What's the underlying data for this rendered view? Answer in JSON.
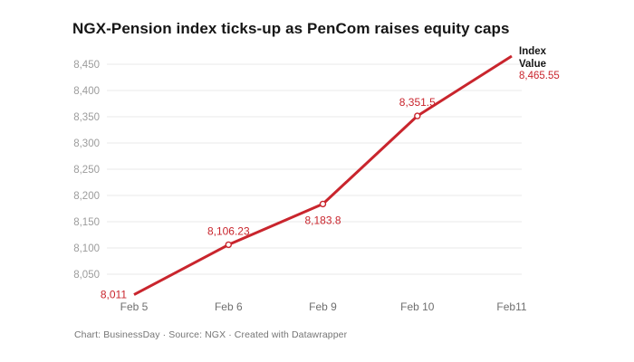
{
  "title": "NGX-Pension index ticks-up as PenCom raises equity caps",
  "legend": {
    "label_line1": "Index",
    "label_line2": "Value",
    "value": "8,465.55"
  },
  "footer": "Chart: BusinessDay · Source: NGX  · Created with Datawrapper",
  "colors": {
    "line": "#c9252d",
    "point_label": "#c9252d",
    "legend_value": "#c9252d",
    "grid": "#e8e8e8",
    "y_axis_text": "#9c9c9c",
    "x_axis_text": "#6f6f6f",
    "title_text": "#161616",
    "footer_text": "#757575",
    "legend_name_text": "#161616",
    "marker_fill": "#ffffff",
    "background": "#ffffff"
  },
  "chart_data": {
    "type": "line",
    "title": "NGX-Pension index ticks-up as PenCom raises equity caps",
    "x": [
      "Feb 5",
      "Feb 6",
      "Feb 9",
      "Feb 10",
      "Feb11"
    ],
    "series": [
      {
        "name": "Index Value",
        "values": [
          8011,
          8106.23,
          8183.8,
          8351.5,
          8465.55
        ]
      }
    ],
    "point_labels": [
      "8,011",
      "8,106.23",
      "8,183.8",
      "8,351.5",
      null
    ],
    "label_positions": [
      "left",
      "above",
      "below",
      "above",
      "legend"
    ],
    "markers": [
      false,
      true,
      true,
      true,
      false
    ],
    "xlabel": "",
    "ylabel": "",
    "ylim": [
      8050,
      8450
    ],
    "yticks": [
      8050,
      8100,
      8150,
      8200,
      8250,
      8300,
      8350,
      8400,
      8450
    ],
    "grid": true,
    "legend_position": "right-of-line-end"
  }
}
